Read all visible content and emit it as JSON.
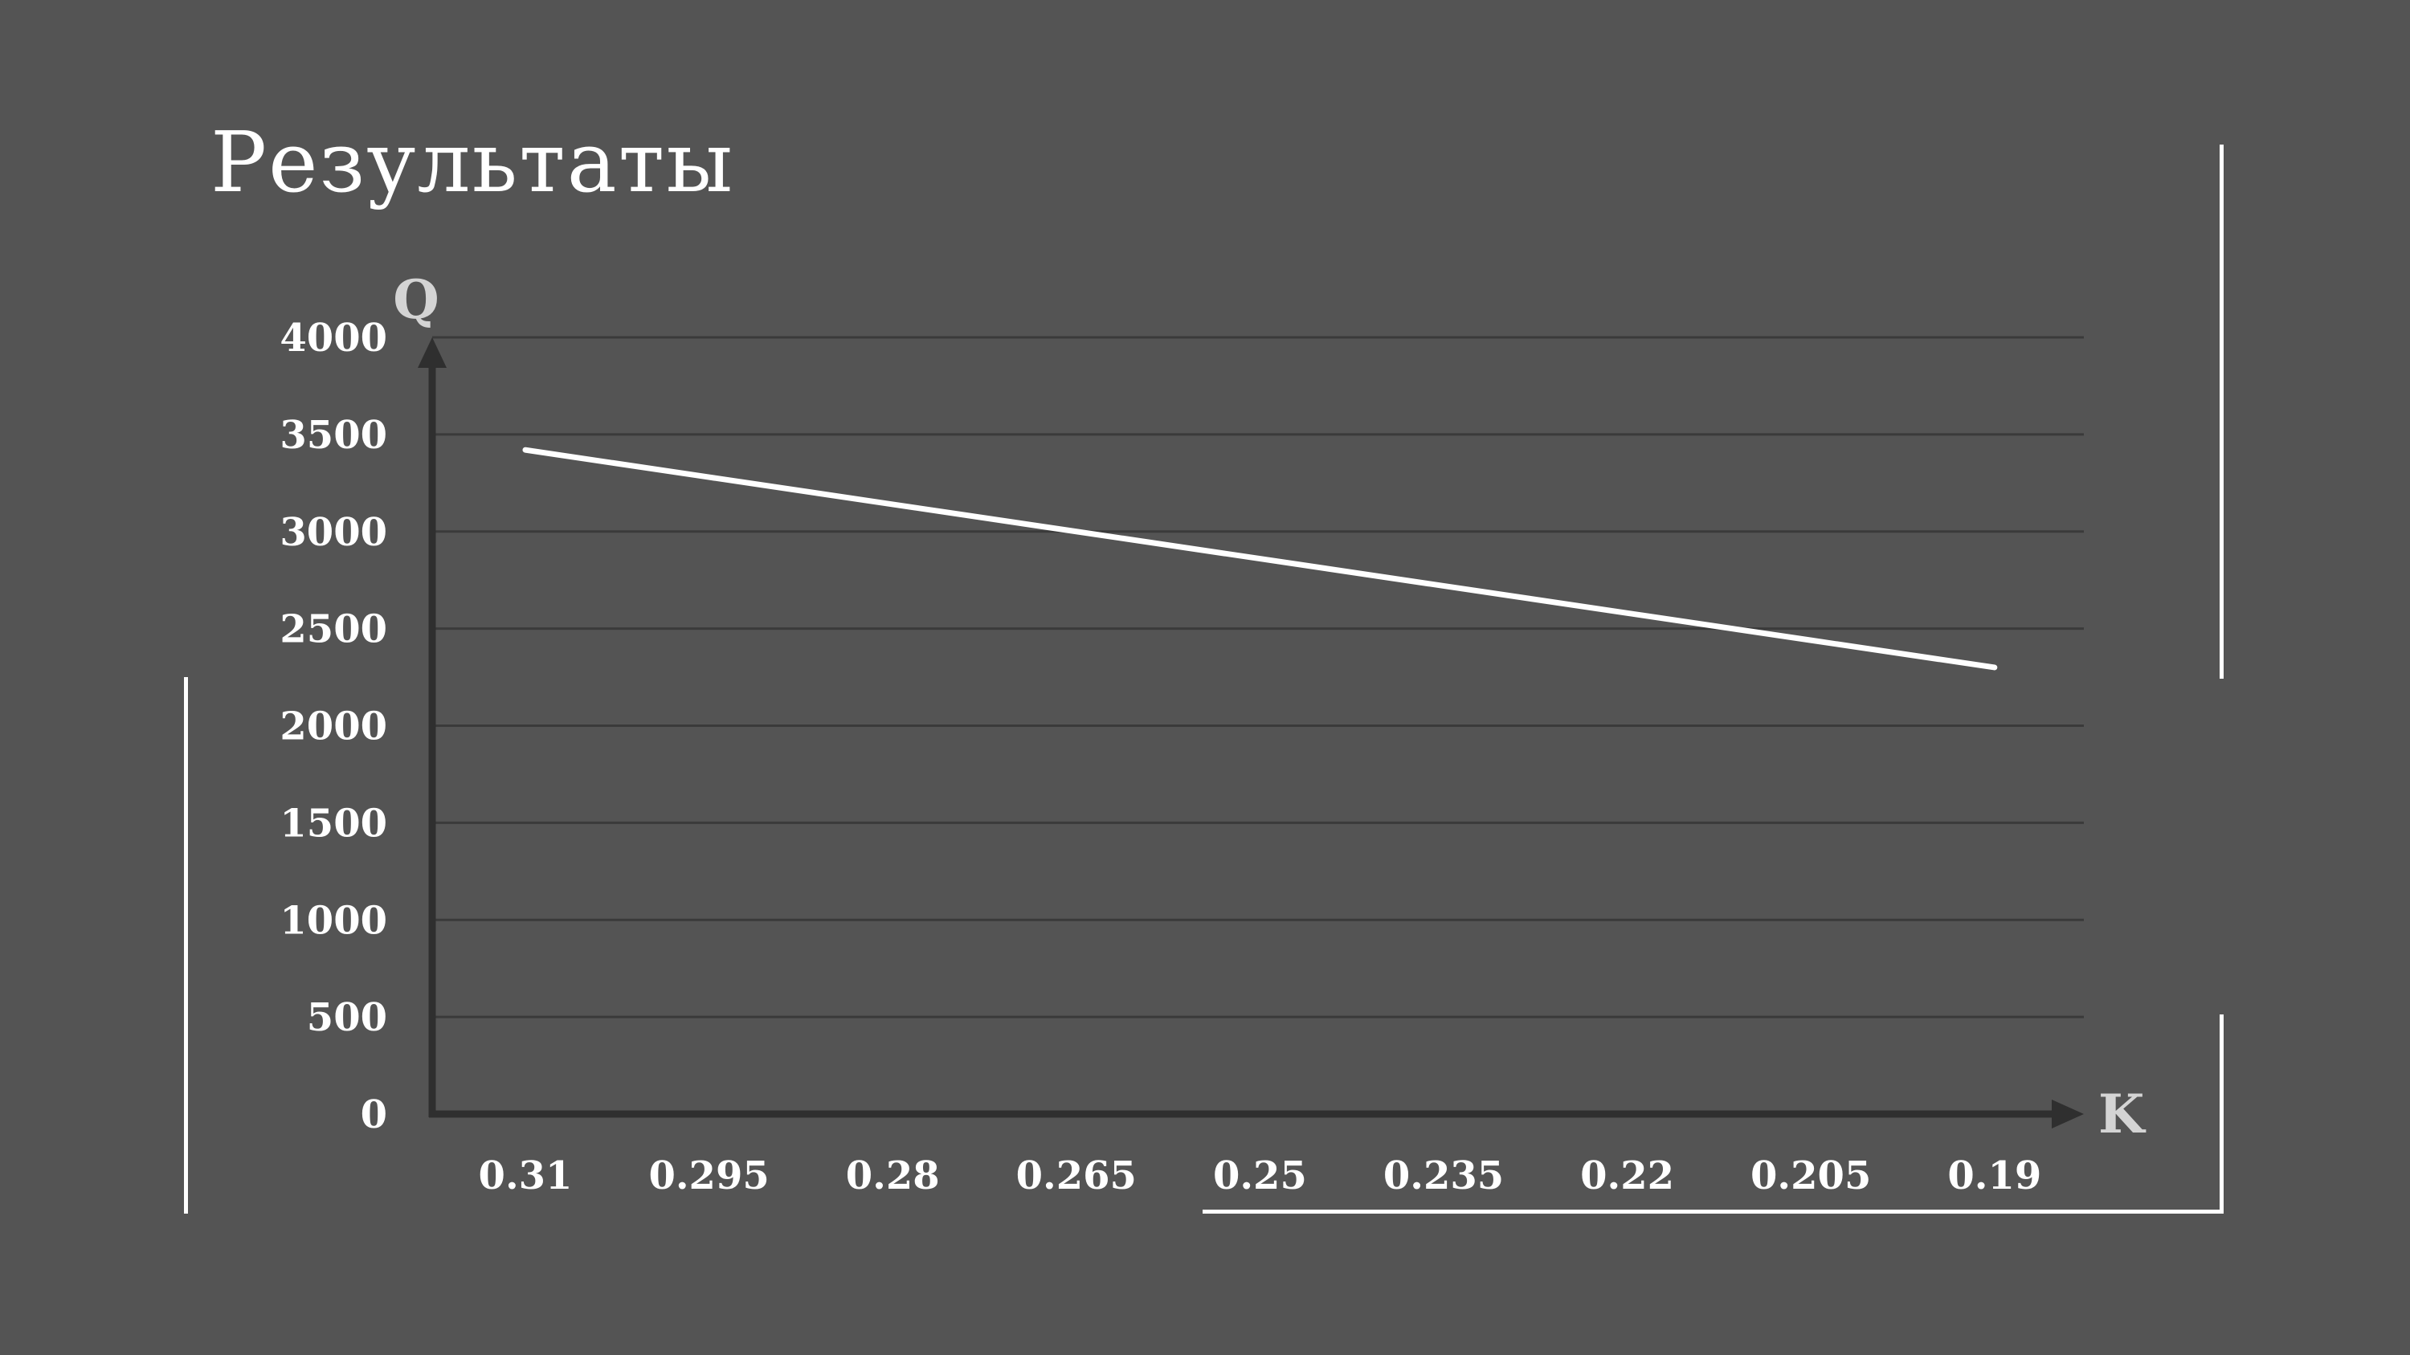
{
  "slide": {
    "title": "Результаты"
  },
  "colors": {
    "background": "#545454",
    "line": "#ffffff",
    "axis": "#2f2f2f",
    "grid": "#3a3a3a",
    "text": "#ffffff",
    "axis_letter": "#d4d4d4"
  },
  "chart_data": {
    "type": "line",
    "title": "",
    "xlabel": "K",
    "ylabel": "Q",
    "categories": [
      "0.31",
      "0.295",
      "0.28",
      "0.265",
      "0.25",
      "0.235",
      "0.22",
      "0.205",
      "0.19"
    ],
    "series": [
      {
        "values": [
          3420,
          3280,
          3140,
          3000,
          2860,
          2720,
          2580,
          2440,
          2300
        ]
      }
    ],
    "yticks": [
      "0",
      "500",
      "1000",
      "1500",
      "2000",
      "2500",
      "3000",
      "3500",
      "4000"
    ],
    "ylim": [
      0,
      4000
    ],
    "grid": "horizontal",
    "legend": "none"
  }
}
